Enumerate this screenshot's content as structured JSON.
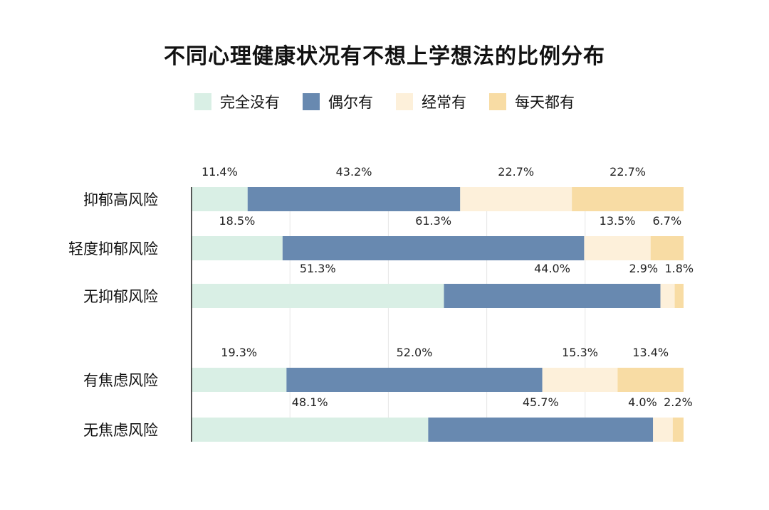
{
  "chart_data": {
    "type": "bar",
    "orientation": "horizontal",
    "stacked": true,
    "percent": true,
    "title": "不同心理健康状况有不想上学想法的比例分布",
    "categories": [
      "抑郁高风险",
      "轻度抑郁风险",
      "无抑郁风险",
      "有焦虑风险",
      "无焦虑风险"
    ],
    "series": [
      {
        "name": "完全没有",
        "color": "#d9efe5",
        "values": [
          11.4,
          18.5,
          51.3,
          19.3,
          48.1
        ]
      },
      {
        "name": "偶尔有",
        "color": "#6889b0",
        "values": [
          43.2,
          61.3,
          44.0,
          52.0,
          45.7
        ]
      },
      {
        "name": "经常有",
        "color": "#fdf0da",
        "values": [
          22.7,
          13.5,
          2.9,
          15.3,
          4.0
        ]
      },
      {
        "name": "每天都有",
        "color": "#f8dca4",
        "values": [
          22.7,
          6.7,
          1.8,
          13.4,
          2.2
        ]
      }
    ],
    "labels": [
      [
        "11.4%",
        "43.2%",
        "22.7%",
        "22.7%"
      ],
      [
        "18.5%",
        "61.3%",
        "13.5%",
        "6.7%"
      ],
      [
        "51.3%",
        "44.0%",
        "2.9%",
        "1.8%"
      ],
      [
        "19.3%",
        "52.0%",
        "15.3%",
        "13.4%"
      ],
      [
        "48.1%",
        "45.7%",
        "4.0%",
        "2.2%"
      ]
    ],
    "xlim": [
      0,
      100
    ],
    "grid": true,
    "legend_position": "top"
  }
}
